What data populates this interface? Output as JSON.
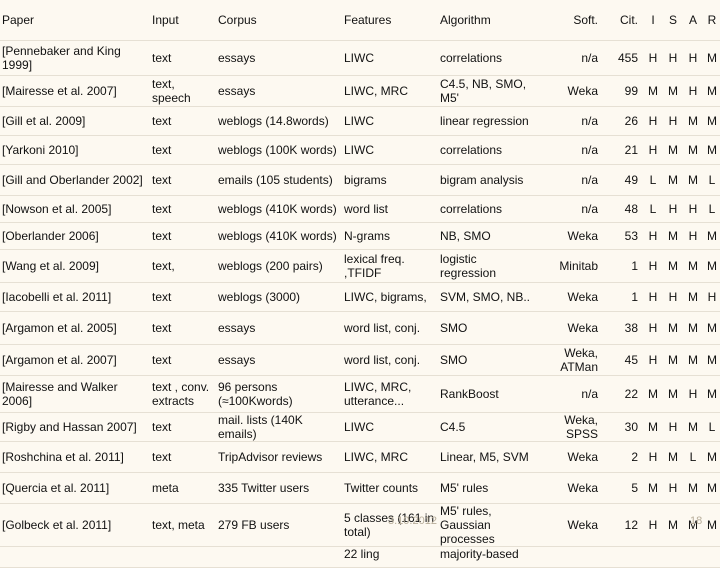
{
  "headers": {
    "paper": "Paper",
    "input": "Input",
    "corpus": "Corpus",
    "features": "Features",
    "algorithm": "Algorithm",
    "soft": "Soft.",
    "cit": "Cit.",
    "i": "I",
    "s": "S",
    "a": "A",
    "r": "R"
  },
  "rows": [
    {
      "paper": "[Pennebaker and King 1999]",
      "input": "text",
      "corpus": "essays",
      "features": "LIWC",
      "algorithm": "correlations",
      "soft": "n/a",
      "cit": "455",
      "i": "H",
      "s": "H",
      "a": "H",
      "r": "M"
    },
    {
      "paper": "[Mairesse et al. 2007]",
      "input": "text, speech",
      "corpus": "essays",
      "features": "LIWC,  MRC",
      "algorithm": "C4.5, NB, SMO, M5'",
      "soft": "Weka",
      "cit": "99",
      "i": "M",
      "s": "M",
      "a": "H",
      "r": "M"
    },
    {
      "paper": "[Gill et al. 2009]",
      "input": "text",
      "corpus": "weblogs (14.8words)",
      "features": "LIWC",
      "algorithm": "linear regression",
      "soft": "n/a",
      "cit": "26",
      "i": "H",
      "s": "H",
      "a": "M",
      "r": "M"
    },
    {
      "paper": "[Yarkoni 2010]",
      "input": "text",
      "corpus": "weblogs (100K words)",
      "features": "LIWC",
      "algorithm": "correlations",
      "soft": "n/a",
      "cit": "21",
      "i": "H",
      "s": "M",
      "a": "M",
      "r": "M"
    },
    {
      "paper": "[Gill and Oberlander 2002]",
      "input": "text",
      "corpus": "emails  (105 students)",
      "features": "bigrams",
      "algorithm": "bigram analysis",
      "soft": "n/a",
      "cit": "49",
      "i": "L",
      "s": "M",
      "a": "M",
      "r": "L"
    },
    {
      "paper": "[Nowson et al. 2005]",
      "input": "text",
      "corpus": "weblogs (410K words)",
      "features": "word list",
      "algorithm": "correlations",
      "soft": "n/a",
      "cit": "48",
      "i": "L",
      "s": "H",
      "a": "H",
      "r": "L"
    },
    {
      "paper": "[Oberlander 2006]",
      "input": "text",
      "corpus": "weblogs  (410K words)",
      "features": "N-grams",
      "algorithm": "NB, SMO",
      "soft": "Weka",
      "cit": "53",
      "i": "H",
      "s": "M",
      "a": "H",
      "r": "M"
    },
    {
      "paper": "[Wang et al. 2009]",
      "input": "text,",
      "corpus": "weblogs  (200 pairs)",
      "features": "lexical freq. ,TFIDF",
      "algorithm": "logistic regression",
      "soft": "Minitab",
      "cit": "1",
      "i": "H",
      "s": "M",
      "a": "M",
      "r": "M"
    },
    {
      "paper": "[Iacobelli et al. 2011]",
      "input": "text",
      "corpus": "weblogs  (3000)",
      "features": "LIWC, bigrams,",
      "algorithm": "SVM,  SMO, NB..",
      "soft": "Weka",
      "cit": "1",
      "i": "H",
      "s": "H",
      "a": "M",
      "r": "H"
    },
    {
      "paper": "[Argamon et al. 2005]",
      "input": "text",
      "corpus": "essays",
      "features": "word list, conj.",
      "algorithm": "SMO",
      "soft": "Weka",
      "cit": "38",
      "i": "H",
      "s": "M",
      "a": "M",
      "r": "M"
    },
    {
      "paper": "[Argamon et al. 2007]",
      "input": "text",
      "corpus": "essays",
      "features": "word list, conj.",
      "algorithm": "SMO",
      "soft": "Weka, ATMan",
      "cit": "45",
      "i": "H",
      "s": "M",
      "a": "M",
      "r": "M"
    },
    {
      "paper": "[Mairesse and Walker 2006]",
      "input": "text , conv. extracts",
      "corpus": "96 persons (≈100Kwords)",
      "features": "LIWC, MRC, utterance...",
      "algorithm": "RankBoost",
      "soft": "n/a",
      "cit": "22",
      "i": "M",
      "s": "M",
      "a": "H",
      "r": "M"
    },
    {
      "paper": "[Rigby and Hassan 2007]",
      "input": "text",
      "corpus": "mail. lists (140K emails)",
      "features": "LIWC",
      "algorithm": "C4.5",
      "soft": "Weka, SPSS",
      "cit": "30",
      "i": "M",
      "s": "H",
      "a": "M",
      "r": "L"
    },
    {
      "paper": "[Roshchina et al. 2011]",
      "input": "text",
      "corpus": "TripAdvisor reviews",
      "features": "LIWC, MRC",
      "algorithm": "Linear, M5, SVM",
      "soft": "Weka",
      "cit": "2",
      "i": "H",
      "s": "M",
      "a": "L",
      "r": "M"
    },
    {
      "paper": "[Quercia et al. 2011]",
      "input": "meta",
      "corpus": "335 Twitter users",
      "features": "Twitter counts",
      "algorithm": "M5' rules",
      "soft": "Weka",
      "cit": "5",
      "i": "M",
      "s": "H",
      "a": "M",
      "r": "M"
    },
    {
      "paper": "[Golbeck et al. 2011]",
      "input": "text, meta",
      "corpus": "279 FB users",
      "features": "5 classes (161 in total)",
      "algorithm": "M5' rules, Gaussian processes",
      "soft": "Weka",
      "cit": "12",
      "i": "H",
      "s": "M",
      "a": "M",
      "r": "M"
    }
  ],
  "partial_row": {
    "features": "22 ling",
    "algorithm": "majority-based"
  },
  "footer": {
    "date": "3.10.2012",
    "page": "18"
  }
}
